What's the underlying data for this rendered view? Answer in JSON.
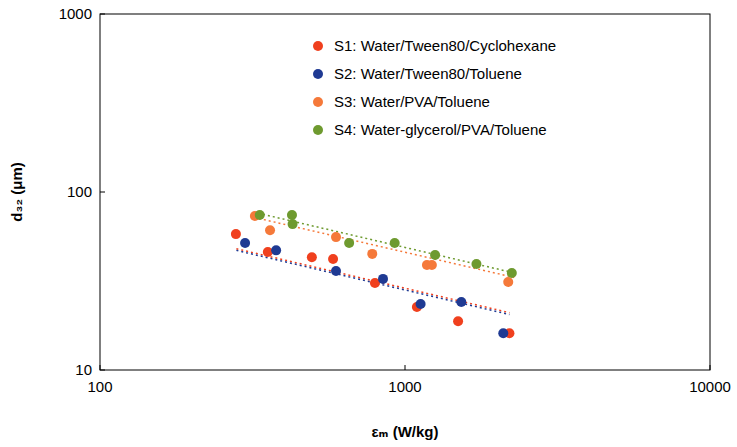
{
  "chart_data": {
    "type": "scatter",
    "x_label": "εₘ (W/kg)",
    "y_label": "d₃₂ (μm)",
    "log": true,
    "grid": false,
    "legend": "upper right",
    "xlim": [
      100,
      10000
    ],
    "ylim": [
      10,
      1000
    ],
    "xticks": [
      100,
      1000,
      10000
    ],
    "yticks": [
      10,
      100,
      1000
    ],
    "series": [
      {
        "name": "S1: Water/Tween80/Cyclohexane",
        "color": "#f0401e",
        "marker": "circle",
        "x": [
          279,
          355,
          495,
          581,
          797,
          1094,
          1493,
          2200
        ],
        "values": [
          58,
          46,
          43,
          42,
          30.8,
          22.6,
          18.8,
          16.1
        ],
        "trend_x": [
          280,
          2200
        ],
        "trend_values": [
          48,
          21
        ]
      },
      {
        "name": "S2: Water/Tween80/Toluene",
        "color": "#1f3a93",
        "marker": "circle",
        "x": [
          299,
          378,
          594,
          847,
          1125,
          1530,
          2100
        ],
        "values": [
          51.7,
          47,
          36,
          32.5,
          23.5,
          24.1,
          16.1
        ],
        "trend_x": [
          280,
          2200
        ],
        "trend_values": [
          47,
          20.5
        ]
      },
      {
        "name": "S3: Water/PVA/Toluene",
        "color": "#f5793a",
        "marker": "circle",
        "x": [
          322,
          361,
          594,
          781,
          1180,
          1225,
          2180
        ],
        "values": [
          73.3,
          61,
          55.8,
          44.9,
          38.9,
          38.9,
          31.2
        ],
        "trend_x": [
          320,
          2300
        ],
        "trend_values": [
          72,
          33
        ]
      },
      {
        "name": "S4: Water-glycerol/PVA/Toluene",
        "color": "#6e9a2f",
        "marker": "circle",
        "x": [
          334,
          426,
          428,
          656,
          925,
          1255,
          1715,
          2240
        ],
        "values": [
          74.3,
          74.3,
          66,
          51.7,
          51.7,
          44.3,
          39.4,
          35.1
        ],
        "trend_x": [
          330,
          2300
        ],
        "trend_values": [
          76,
          35
        ]
      }
    ]
  }
}
